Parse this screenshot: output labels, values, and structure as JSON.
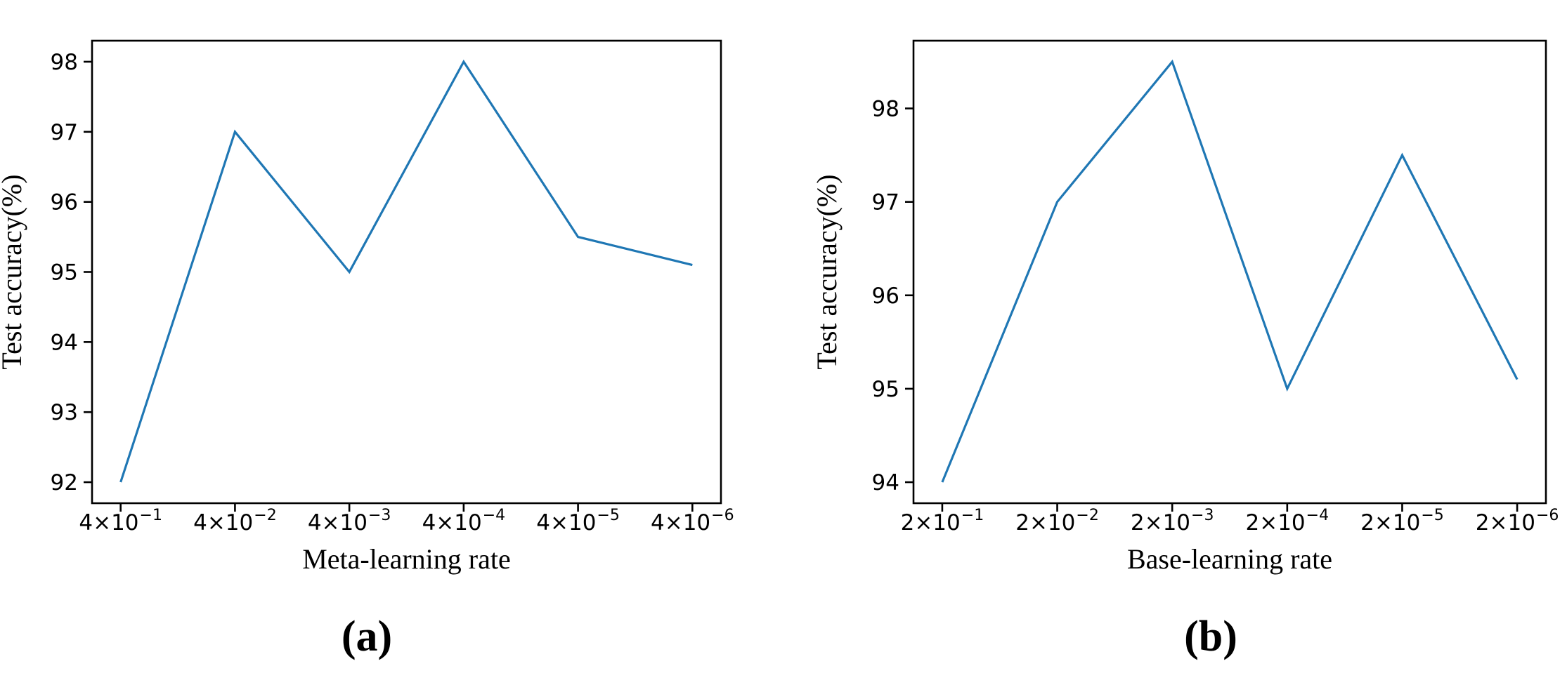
{
  "figure": {
    "background": "#ffffff",
    "line_color": "#1f77b4",
    "axis_color": "#000000",
    "tick_label_color": "#000000"
  },
  "chart_data": [
    {
      "id": "a",
      "type": "line",
      "caption": "(a)",
      "xlabel": "Meta-learning rate",
      "ylabel": "Test accuracy(%)",
      "categories": [
        "4×10⁻¹",
        "4×10⁻²",
        "4×10⁻³",
        "4×10⁻⁴",
        "4×10⁻⁵",
        "4×10⁻⁶"
      ],
      "values": [
        92,
        97,
        95,
        98,
        95.5,
        95.1
      ],
      "yticks": [
        92,
        93,
        94,
        95,
        96,
        97,
        98
      ],
      "ylim": [
        91.7,
        98.3
      ],
      "grid": false,
      "legend": null
    },
    {
      "id": "b",
      "type": "line",
      "caption": "(b)",
      "xlabel": "Base-learning rate",
      "ylabel": "Test accuracy(%)",
      "categories": [
        "2×10⁻¹",
        "2×10⁻²",
        "2×10⁻³",
        "2×10⁻⁴",
        "2×10⁻⁵",
        "2×10⁻⁶"
      ],
      "values": [
        94,
        97,
        98.5,
        95,
        97.5,
        95.1
      ],
      "yticks": [
        94,
        95,
        96,
        97,
        98
      ],
      "ylim": [
        93.775,
        98.725
      ],
      "grid": false,
      "legend": null
    }
  ]
}
